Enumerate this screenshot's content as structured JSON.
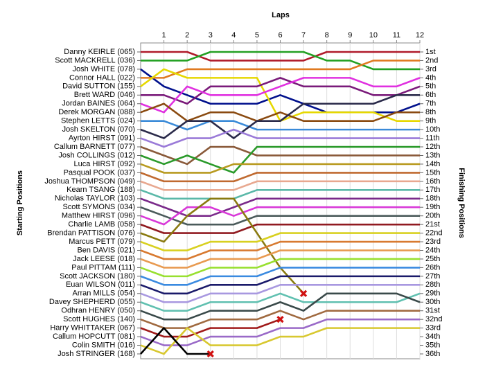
{
  "chart_data": {
    "type": "line",
    "x_label": "Laps",
    "y_label": "Starting Positions",
    "y2_label": "Finishing Positions",
    "x": [
      0,
      1,
      2,
      3,
      4,
      5,
      6,
      7,
      8,
      9,
      10,
      11,
      12
    ],
    "xlim": [
      0,
      12
    ],
    "xticks": [
      1,
      2,
      3,
      4,
      5,
      6,
      7,
      8,
      9,
      10,
      11,
      12
    ],
    "ylim": [
      1,
      36
    ],
    "y_inverted": true,
    "grid": true,
    "y2ticks": [
      {
        "value": 1,
        "label": "1st"
      },
      {
        "value": 2,
        "label": "2nd"
      },
      {
        "value": 3,
        "label": "3rd"
      },
      {
        "value": 4,
        "label": "4th"
      },
      {
        "value": 5,
        "label": "5th"
      },
      {
        "value": 6,
        "label": "6th"
      },
      {
        "value": 7,
        "label": "7th"
      },
      {
        "value": 8,
        "label": "8th"
      },
      {
        "value": 9,
        "label": "9th"
      },
      {
        "value": 10,
        "label": "10th"
      },
      {
        "value": 11,
        "label": "11th"
      },
      {
        "value": 12,
        "label": "12th"
      },
      {
        "value": 13,
        "label": "13th"
      },
      {
        "value": 14,
        "label": "14th"
      },
      {
        "value": 15,
        "label": "15th"
      },
      {
        "value": 16,
        "label": "16th"
      },
      {
        "value": 17,
        "label": "17th"
      },
      {
        "value": 18,
        "label": "18th"
      },
      {
        "value": 19,
        "label": "19th"
      },
      {
        "value": 20,
        "label": "20th"
      },
      {
        "value": 21,
        "label": "21st"
      },
      {
        "value": 22,
        "label": "22nd"
      },
      {
        "value": 23,
        "label": "23rd"
      },
      {
        "value": 24,
        "label": "24th"
      },
      {
        "value": 25,
        "label": "25th"
      },
      {
        "value": 26,
        "label": "26th"
      },
      {
        "value": 27,
        "label": "27th"
      },
      {
        "value": 28,
        "label": "28th"
      },
      {
        "value": 29,
        "label": "29th"
      },
      {
        "value": 30,
        "label": "30th"
      },
      {
        "value": 31,
        "label": "31st"
      },
      {
        "value": 32,
        "label": "32nd"
      },
      {
        "value": 33,
        "label": "33rd"
      },
      {
        "value": 34,
        "label": "34th"
      },
      {
        "value": 35,
        "label": "35th"
      },
      {
        "value": 36,
        "label": "36th"
      }
    ],
    "series": [
      {
        "name": "Danny KEIRLE (065)",
        "color": "#b01a2a",
        "values": [
          1,
          1,
          1,
          2,
          2,
          2,
          2,
          2,
          1,
          1,
          1,
          1,
          1
        ]
      },
      {
        "name": "Scott MACKRELL (036)",
        "color": "#22a022",
        "values": [
          2,
          2,
          2,
          1,
          1,
          1,
          1,
          1,
          2,
          2,
          3,
          3,
          3
        ]
      },
      {
        "name": "Josh WHITE (078)",
        "color": "#00108c",
        "values": [
          3,
          5,
          6,
          7,
          7,
          7,
          6,
          7,
          8,
          8,
          8,
          8,
          7
        ]
      },
      {
        "name": "Connor HALL (022)",
        "color": "#e07a20",
        "values": [
          4,
          4,
          3,
          3,
          3,
          3,
          3,
          3,
          3,
          3,
          2,
          2,
          2
        ]
      },
      {
        "name": "David SUTTON (155)",
        "color": "#e6d800",
        "values": [
          5,
          3,
          4,
          4,
          4,
          4,
          9,
          8,
          8,
          8,
          8,
          9,
          9
        ]
      },
      {
        "name": "Brett WARD (046)",
        "color": "#7a1a7a",
        "values": [
          6,
          6,
          7,
          5,
          5,
          5,
          4,
          5,
          5,
          5,
          6,
          6,
          5
        ]
      },
      {
        "name": "Jordan BAINES (064)",
        "color": "#e030e0",
        "values": [
          7,
          8,
          5,
          6,
          6,
          6,
          5,
          4,
          4,
          4,
          5,
          5,
          4
        ]
      },
      {
        "name": "Derek MORGAN (088)",
        "color": "#8a4a10",
        "values": [
          8,
          7,
          9,
          8,
          8,
          9,
          8,
          9,
          9,
          9,
          9,
          8,
          8
        ]
      },
      {
        "name": "Stephen LETTS (024)",
        "color": "#3a8ad8",
        "values": [
          9,
          9,
          10,
          9,
          9,
          10,
          10,
          10,
          10,
          10,
          10,
          10,
          10
        ]
      },
      {
        "name": "Josh SKELTON (070)",
        "color": "#2a2a4a",
        "values": [
          10,
          11,
          9,
          9,
          11,
          9,
          9,
          7,
          7,
          7,
          7,
          6,
          6
        ]
      },
      {
        "name": "Ayrton HIRST (091)",
        "color": "#9a7ad8",
        "values": [
          11,
          12,
          11,
          11,
          10,
          11,
          11,
          11,
          11,
          11,
          11,
          11,
          11
        ]
      },
      {
        "name": "Callum BARNETT (077)",
        "color": "#8a5a3a",
        "values": [
          12,
          13,
          14,
          12,
          12,
          13,
          13,
          13,
          13,
          13,
          13,
          13,
          13
        ]
      },
      {
        "name": "Josh COLLINGS (012)",
        "color": "#2a9a2a",
        "values": [
          13,
          14,
          13,
          14,
          15,
          12,
          12,
          12,
          12,
          12,
          12,
          12,
          12
        ]
      },
      {
        "name": "Luca HIRST (092)",
        "color": "#b89a20",
        "values": [
          14,
          15,
          15,
          15,
          14,
          14,
          14,
          14,
          14,
          14,
          14,
          14,
          14
        ]
      },
      {
        "name": "Pasqual POOK (037)",
        "color": "#c06a30",
        "values": [
          15,
          16,
          16,
          16,
          16,
          15,
          15,
          15,
          15,
          15,
          15,
          15,
          15
        ]
      },
      {
        "name": "Joshua THOMPSON (049)",
        "color": "#e8a890",
        "values": [
          16,
          17,
          17,
          17,
          17,
          16,
          16,
          16,
          16,
          16,
          16,
          16,
          16
        ]
      },
      {
        "name": "Kearn TSANG (188)",
        "color": "#5ab8a8",
        "values": [
          17,
          18,
          18,
          18,
          18,
          17,
          17,
          17,
          17,
          17,
          17,
          17,
          17
        ]
      },
      {
        "name": "Nicholas TAYLOR (103)",
        "color": "#7a2a8a",
        "values": [
          18,
          19,
          20,
          20,
          19,
          18,
          18,
          18,
          18,
          18,
          18,
          18,
          18
        ]
      },
      {
        "name": "Scott SYMONS (034)",
        "color": "#4a5a5a",
        "values": [
          19,
          20,
          21,
          21,
          21,
          20,
          20,
          20,
          20,
          20,
          20,
          20,
          20
        ]
      },
      {
        "name": "Matthew  HIRST (096)",
        "color": "#d838d8",
        "values": [
          20,
          21,
          19,
          19,
          20,
          19,
          19,
          19,
          19,
          19,
          19,
          19,
          19
        ]
      },
      {
        "name": "Charlie LAMB (058)",
        "color": "#901a20",
        "values": [
          21,
          22,
          22,
          22,
          22,
          21,
          21,
          21,
          21,
          21,
          21,
          21,
          21
        ]
      },
      {
        "name": "Brendan PATTISON (076)",
        "color": "#8a7a10",
        "values": [
          22,
          23,
          20,
          18,
          18,
          22,
          26,
          29,
          null,
          null,
          null,
          null,
          null
        ]
      },
      {
        "name": "Marcus PETT (079)",
        "color": "#d8d020",
        "values": [
          23,
          24,
          24,
          23,
          23,
          23,
          22,
          22,
          22,
          22,
          22,
          22,
          22
        ]
      },
      {
        "name": "Ben DAVIS (021)",
        "color": "#d87a30",
        "values": [
          24,
          25,
          25,
          24,
          24,
          24,
          23,
          23,
          23,
          23,
          23,
          23,
          23
        ]
      },
      {
        "name": "Jack LEESE (018)",
        "color": "#e89a50",
        "values": [
          25,
          26,
          26,
          25,
          25,
          25,
          24,
          24,
          24,
          24,
          24,
          24,
          24
        ]
      },
      {
        "name": "Paul  PITTAM (111)",
        "color": "#98e030",
        "values": [
          26,
          27,
          27,
          26,
          26,
          26,
          25,
          25,
          25,
          25,
          25,
          25,
          25
        ]
      },
      {
        "name": "Scott JACKSON (180)",
        "color": "#3a8ae0",
        "values": [
          27,
          28,
          28,
          27,
          27,
          27,
          26,
          26,
          26,
          26,
          26,
          26,
          26
        ]
      },
      {
        "name": "Euan WILSON (011)",
        "color": "#1a1a6a",
        "values": [
          28,
          29,
          29,
          28,
          28,
          28,
          27,
          27,
          27,
          27,
          27,
          27,
          27
        ]
      },
      {
        "name": "Arran MILLS (054)",
        "color": "#a898e0",
        "values": [
          29,
          30,
          30,
          29,
          29,
          29,
          28,
          28,
          28,
          28,
          28,
          28,
          28
        ]
      },
      {
        "name": "Davey SHEPHERD (055)",
        "color": "#60c0b0",
        "values": [
          30,
          31,
          31,
          30,
          30,
          30,
          29,
          30,
          30,
          30,
          30,
          30,
          29
        ]
      },
      {
        "name": "Odhran  HENRY (050)",
        "color": "#3a4a4a",
        "values": [
          31,
          32,
          32,
          31,
          31,
          31,
          30,
          31,
          29,
          29,
          29,
          29,
          30
        ]
      },
      {
        "name": "Scott HUGHES (140)",
        "color": "#a06a40",
        "values": [
          32,
          33,
          33,
          32,
          32,
          32,
          31,
          32,
          31,
          31,
          31,
          31,
          31
        ]
      },
      {
        "name": "Harry WHITTAKER (067)",
        "color": "#a01a1a",
        "values": [
          33,
          34,
          34,
          33,
          33,
          33,
          32,
          null,
          null,
          null,
          null,
          null,
          null
        ]
      },
      {
        "name": "Callum HOPCUTT (081)",
        "color": "#9a6ac8",
        "values": [
          34,
          35,
          35,
          34,
          34,
          34,
          33,
          33,
          32,
          32,
          32,
          32,
          32
        ]
      },
      {
        "name": "Colin SMITH (016)",
        "color": "#d8c830",
        "values": [
          35,
          36,
          33,
          35,
          35,
          35,
          34,
          34,
          33,
          33,
          33,
          33,
          33
        ]
      },
      {
        "name": "Josh STRINGER (168)",
        "color": "#000000",
        "values": [
          36,
          33,
          36,
          36,
          null,
          null,
          null,
          null,
          null,
          null,
          null,
          null,
          null
        ]
      }
    ]
  }
}
